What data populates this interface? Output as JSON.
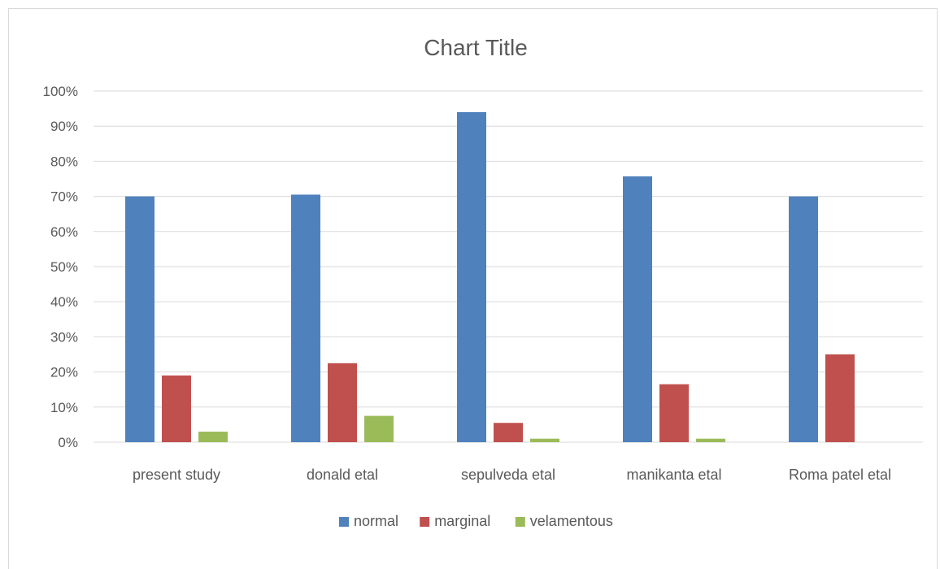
{
  "chart_data": {
    "type": "bar",
    "title": "Chart Title",
    "xlabel": "",
    "ylabel": "",
    "ylim": [
      0,
      1
    ],
    "yticks": [
      "0%",
      "10%",
      "20%",
      "30%",
      "40%",
      "50%",
      "60%",
      "70%",
      "80%",
      "90%",
      "100%"
    ],
    "grid": true,
    "legend_position": "bottom",
    "categories": [
      "present study",
      "donald etal",
      "sepulveda etal",
      "manikanta etal",
      "Roma patel etal"
    ],
    "series": [
      {
        "name": "normal",
        "color": "#4f81bd",
        "values": [
          0.7,
          0.705,
          0.94,
          0.757,
          0.7
        ]
      },
      {
        "name": "marginal",
        "color": "#c0504d",
        "values": [
          0.19,
          0.225,
          0.055,
          0.165,
          0.25
        ]
      },
      {
        "name": "velamentous",
        "color": "#9bbb59",
        "values": [
          0.03,
          0.075,
          0.01,
          0.01,
          0.0
        ]
      }
    ]
  }
}
